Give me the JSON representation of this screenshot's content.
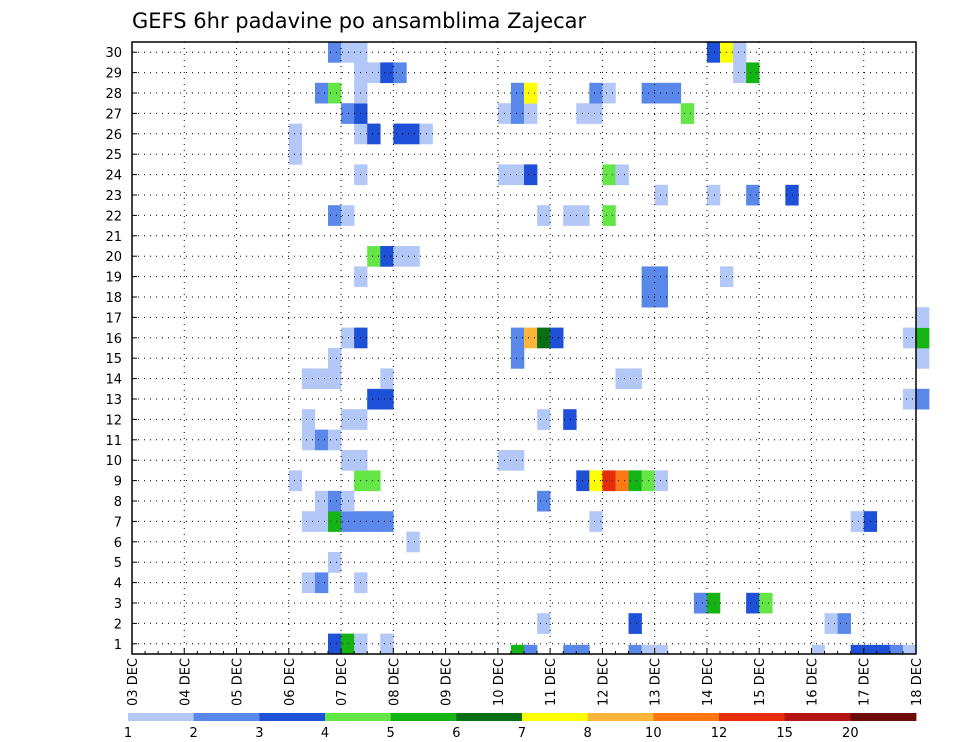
{
  "chart_data": {
    "type": "heatmap",
    "title": "GEFS 6hr padavine po ansamblima Zajecar",
    "x_labels": [
      "03 DEC",
      "04 DEC",
      "05 DEC",
      "06 DEC",
      "07 DEC",
      "08 DEC",
      "09 DEC",
      "10 DEC",
      "11 DEC",
      "12 DEC",
      "13 DEC",
      "14 DEC",
      "15 DEC",
      "16 DEC",
      "17 DEC",
      "18 DEC"
    ],
    "y_labels": [
      "1",
      "2",
      "3",
      "4",
      "5",
      "6",
      "7",
      "8",
      "9",
      "10",
      "11",
      "12",
      "13",
      "14",
      "15",
      "16",
      "17",
      "18",
      "19",
      "20",
      "21",
      "22",
      "23",
      "24",
      "25",
      "26",
      "27",
      "28",
      "29",
      "30"
    ],
    "legend": {
      "levels": [
        "1",
        "2",
        "3",
        "4",
        "5",
        "6",
        "7",
        "8",
        "10",
        "12",
        "15",
        "20"
      ],
      "colors": [
        "#b4c8f8",
        "#5a88ea",
        "#1e50d8",
        "#64e646",
        "#14b414",
        "#0a6e14",
        "#ffff00",
        "#ffb43c",
        "#ff7814",
        "#e62d0a",
        "#b41414",
        "#6e0a0a"
      ]
    },
    "grid": true,
    "cells": [
      {
        "member": 0,
        "date": "10 DEC 06Z",
        "cls": 5
      },
      {
        "member": 0,
        "date": "10 DEC 12Z",
        "cls": 2
      },
      {
        "member": 0,
        "date": "11 DEC 06Z",
        "cls": 2
      },
      {
        "member": 0,
        "date": "11 DEC 12Z",
        "cls": 2
      },
      {
        "member": 0,
        "date": "12 DEC 12Z",
        "cls": 2
      },
      {
        "member": 0,
        "date": "12 DEC 18Z",
        "cls": 1
      },
      {
        "member": 0,
        "date": "13 DEC 00Z",
        "cls": 1
      },
      {
        "member": 0,
        "date": "16 DEC 00Z",
        "cls": 1
      },
      {
        "member": 0,
        "date": "16 DEC 18Z",
        "cls": 3
      },
      {
        "member": 0,
        "date": "17 DEC 00Z",
        "cls": 3
      },
      {
        "member": 0,
        "date": "17 DEC 06Z",
        "cls": 3
      },
      {
        "member": 0,
        "date": "17 DEC 12Z",
        "cls": 2
      },
      {
        "member": 0,
        "date": "17 DEC 18Z",
        "cls": 1
      },
      {
        "member": 1,
        "date": "06 DEC 18Z",
        "cls": 3
      },
      {
        "member": 1,
        "date": "07 DEC 00Z",
        "cls": 5
      },
      {
        "member": 1,
        "date": "07 DEC 06Z",
        "cls": 1
      },
      {
        "member": 1,
        "date": "07 DEC 18Z",
        "cls": 1
      },
      {
        "member": 2,
        "date": "10 DEC 18Z",
        "cls": 1
      },
      {
        "member": 2,
        "date": "12 DEC 12Z",
        "cls": 3
      },
      {
        "member": 2,
        "date": "16 DEC 06Z",
        "cls": 1
      },
      {
        "member": 2,
        "date": "16 DEC 12Z",
        "cls": 2
      },
      {
        "member": 3,
        "date": "13 DEC 18Z",
        "cls": 2
      },
      {
        "member": 3,
        "date": "14 DEC 00Z",
        "cls": 5
      },
      {
        "member": 3,
        "date": "14 DEC 18Z",
        "cls": 3
      },
      {
        "member": 3,
        "date": "15 DEC 00Z",
        "cls": 4
      },
      {
        "member": 4,
        "date": "06 DEC 06Z",
        "cls": 1
      },
      {
        "member": 4,
        "date": "06 DEC 12Z",
        "cls": 2
      },
      {
        "member": 4,
        "date": "07 DEC 06Z",
        "cls": 1
      },
      {
        "member": 5,
        "date": "06 DEC 18Z",
        "cls": 1
      },
      {
        "member": 6,
        "date": "08 DEC 06Z",
        "cls": 1
      },
      {
        "member": 7,
        "date": "06 DEC 06Z",
        "cls": 1
      },
      {
        "member": 7,
        "date": "06 DEC 12Z",
        "cls": 1
      },
      {
        "member": 7,
        "date": "06 DEC 18Z",
        "cls": 5
      },
      {
        "member": 7,
        "date": "07 DEC 00Z",
        "cls": 2
      },
      {
        "member": 7,
        "date": "07 DEC 06Z",
        "cls": 2
      },
      {
        "member": 7,
        "date": "07 DEC 12Z",
        "cls": 2
      },
      {
        "member": 7,
        "date": "07 DEC 18Z",
        "cls": 2
      },
      {
        "member": 7,
        "date": "11 DEC 18Z",
        "cls": 1
      },
      {
        "member": 7,
        "date": "16 DEC 18Z",
        "cls": 1
      },
      {
        "member": 7,
        "date": "17 DEC 00Z",
        "cls": 3
      },
      {
        "member": 8,
        "date": "06 DEC 12Z",
        "cls": 1
      },
      {
        "member": 8,
        "date": "06 DEC 18Z",
        "cls": 2
      },
      {
        "member": 8,
        "date": "07 DEC 00Z",
        "cls": 1
      },
      {
        "member": 8,
        "date": "10 DEC 18Z",
        "cls": 2
      },
      {
        "member": 9,
        "date": "06 DEC 00Z",
        "cls": 1
      },
      {
        "member": 9,
        "date": "07 DEC 06Z",
        "cls": 4
      },
      {
        "member": 9,
        "date": "07 DEC 12Z",
        "cls": 4
      },
      {
        "member": 9,
        "date": "11 DEC 12Z",
        "cls": 3
      },
      {
        "member": 9,
        "date": "11 DEC 18Z",
        "cls": 7
      },
      {
        "member": 9,
        "date": "12 DEC 00Z",
        "cls": 10
      },
      {
        "member": 9,
        "date": "12 DEC 06Z",
        "cls": 9
      },
      {
        "member": 9,
        "date": "12 DEC 12Z",
        "cls": 5
      },
      {
        "member": 9,
        "date": "12 DEC 18Z",
        "cls": 4
      },
      {
        "member": 9,
        "date": "13 DEC 00Z",
        "cls": 1
      },
      {
        "member": 10,
        "date": "10 DEC 00Z",
        "cls": 1
      },
      {
        "member": 10,
        "date": "10 DEC 06Z",
        "cls": 1
      },
      {
        "member": 10,
        "date": "07 DEC 00Z",
        "cls": 1
      },
      {
        "member": 10,
        "date": "07 DEC 06Z",
        "cls": 1
      },
      {
        "member": 11,
        "date": "06 DEC 06Z",
        "cls": 1
      },
      {
        "member": 11,
        "date": "06 DEC 12Z",
        "cls": 2
      },
      {
        "member": 11,
        "date": "06 DEC 18Z",
        "cls": 1
      },
      {
        "member": 12,
        "date": "06 DEC 06Z",
        "cls": 1
      },
      {
        "member": 12,
        "date": "07 DEC 00Z",
        "cls": 1
      },
      {
        "member": 12,
        "date": "07 DEC 06Z",
        "cls": 1
      },
      {
        "member": 12,
        "date": "10 DEC 18Z",
        "cls": 1
      },
      {
        "member": 12,
        "date": "11 DEC 06Z",
        "cls": 3
      },
      {
        "member": 13,
        "date": "07 DEC 12Z",
        "cls": 3
      },
      {
        "member": 13,
        "date": "07 DEC 18Z",
        "cls": 3
      },
      {
        "member": 13,
        "date": "17 DEC 18Z",
        "cls": 1
      },
      {
        "member": 13,
        "date": "18 DEC 00Z",
        "cls": 2
      },
      {
        "member": 14,
        "date": "06 DEC 06Z",
        "cls": 1
      },
      {
        "member": 14,
        "date": "06 DEC 12Z",
        "cls": 1
      },
      {
        "member": 14,
        "date": "06 DEC 18Z",
        "cls": 1
      },
      {
        "member": 14,
        "date": "07 DEC 18Z",
        "cls": 1
      },
      {
        "member": 14,
        "date": "12 DEC 06Z",
        "cls": 1
      },
      {
        "member": 14,
        "date": "12 DEC 12Z",
        "cls": 1
      },
      {
        "member": 15,
        "date": "06 DEC 18Z",
        "cls": 1
      },
      {
        "member": 15,
        "date": "10 DEC 06Z",
        "cls": 2
      },
      {
        "member": 15,
        "date": "18 DEC 00Z",
        "cls": 1
      },
      {
        "member": 16,
        "date": "07 DEC 00Z",
        "cls": 1
      },
      {
        "member": 16,
        "date": "07 DEC 06Z",
        "cls": 3
      },
      {
        "member": 16,
        "date": "10 DEC 06Z",
        "cls": 2
      },
      {
        "member": 16,
        "date": "10 DEC 12Z",
        "cls": 8
      },
      {
        "member": 16,
        "date": "10 DEC 18Z",
        "cls": 6
      },
      {
        "member": 16,
        "date": "11 DEC 00Z",
        "cls": 3
      },
      {
        "member": 16,
        "date": "17 DEC 18Z",
        "cls": 1
      },
      {
        "member": 16,
        "date": "18 DEC 00Z",
        "cls": 5
      },
      {
        "member": 17,
        "date": "18 DEC 00Z",
        "cls": 1
      },
      {
        "member": 18,
        "date": "12 DEC 18Z",
        "cls": 2
      },
      {
        "member": 18,
        "date": "13 DEC 00Z",
        "cls": 2
      },
      {
        "member": 19,
        "date": "07 DEC 06Z",
        "cls": 1
      },
      {
        "member": 19,
        "date": "12 DEC 18Z",
        "cls": 2
      },
      {
        "member": 19,
        "date": "13 DEC 00Z",
        "cls": 2
      },
      {
        "member": 19,
        "date": "14 DEC 06Z",
        "cls": 1
      },
      {
        "member": 20,
        "date": "07 DEC 12Z",
        "cls": 4
      },
      {
        "member": 20,
        "date": "07 DEC 18Z",
        "cls": 3
      },
      {
        "member": 20,
        "date": "08 DEC 00Z",
        "cls": 1
      },
      {
        "member": 20,
        "date": "08 DEC 06Z",
        "cls": 1
      },
      {
        "member": 22,
        "date": "06 DEC 18Z",
        "cls": 2
      },
      {
        "member": 22,
        "date": "07 DEC 00Z",
        "cls": 1
      },
      {
        "member": 22,
        "date": "10 DEC 18Z",
        "cls": 1
      },
      {
        "member": 22,
        "date": "11 DEC 06Z",
        "cls": 1
      },
      {
        "member": 22,
        "date": "11 DEC 12Z",
        "cls": 1
      },
      {
        "member": 22,
        "date": "12 DEC 00Z",
        "cls": 4
      },
      {
        "member": 23,
        "date": "13 DEC 00Z",
        "cls": 1
      },
      {
        "member": 23,
        "date": "14 DEC 00Z",
        "cls": 1
      },
      {
        "member": 23,
        "date": "14 DEC 18Z",
        "cls": 2
      },
      {
        "member": 23,
        "date": "15 DEC 12Z",
        "cls": 3
      },
      {
        "member": 24,
        "date": "07 DEC 06Z",
        "cls": 1
      },
      {
        "member": 24,
        "date": "10 DEC 00Z",
        "cls": 1
      },
      {
        "member": 24,
        "date": "10 DEC 06Z",
        "cls": 1
      },
      {
        "member": 24,
        "date": "10 DEC 12Z",
        "cls": 3
      },
      {
        "member": 24,
        "date": "12 DEC 00Z",
        "cls": 4
      },
      {
        "member": 24,
        "date": "12 DEC 06Z",
        "cls": 1
      },
      {
        "member": 25,
        "date": "06 DEC 00Z",
        "cls": 1
      },
      {
        "member": 26,
        "date": "06 DEC 00Z",
        "cls": 1
      },
      {
        "member": 26,
        "date": "07 DEC 06Z",
        "cls": 1
      },
      {
        "member": 26,
        "date": "07 DEC 12Z",
        "cls": 3
      },
      {
        "member": 26,
        "date": "08 DEC 00Z",
        "cls": 3
      },
      {
        "member": 26,
        "date": "08 DEC 06Z",
        "cls": 3
      },
      {
        "member": 26,
        "date": "08 DEC 12Z",
        "cls": 1
      },
      {
        "member": 27,
        "date": "07 DEC 00Z",
        "cls": 2
      },
      {
        "member": 27,
        "date": "07 DEC 06Z",
        "cls": 3
      },
      {
        "member": 27,
        "date": "10 DEC 00Z",
        "cls": 1
      },
      {
        "member": 27,
        "date": "10 DEC 06Z",
        "cls": 2
      },
      {
        "member": 27,
        "date": "10 DEC 12Z",
        "cls": 1
      },
      {
        "member": 27,
        "date": "11 DEC 12Z",
        "cls": 1
      },
      {
        "member": 27,
        "date": "11 DEC 18Z",
        "cls": 1
      },
      {
        "member": 27,
        "date": "13 DEC 12Z",
        "cls": 4
      },
      {
        "member": 28,
        "date": "06 DEC 12Z",
        "cls": 2
      },
      {
        "member": 28,
        "date": "06 DEC 18Z",
        "cls": 4
      },
      {
        "member": 28,
        "date": "07 DEC 06Z",
        "cls": 1
      },
      {
        "member": 28,
        "date": "10 DEC 06Z",
        "cls": 2
      },
      {
        "member": 28,
        "date": "10 DEC 12Z",
        "cls": 7
      },
      {
        "member": 28,
        "date": "11 DEC 18Z",
        "cls": 2
      },
      {
        "member": 28,
        "date": "12 DEC 00Z",
        "cls": 1
      },
      {
        "member": 28,
        "date": "12 DEC 18Z",
        "cls": 2
      },
      {
        "member": 28,
        "date": "13 DEC 00Z",
        "cls": 2
      },
      {
        "member": 28,
        "date": "13 DEC 06Z",
        "cls": 2
      },
      {
        "member": 29,
        "date": "07 DEC 06Z",
        "cls": 1
      },
      {
        "member": 29,
        "date": "07 DEC 12Z",
        "cls": 1
      },
      {
        "member": 29,
        "date": "07 DEC 18Z",
        "cls": 3
      },
      {
        "member": 29,
        "date": "08 DEC 00Z",
        "cls": 2
      },
      {
        "member": 29,
        "date": "14 DEC 12Z",
        "cls": 1
      },
      {
        "member": 29,
        "date": "14 DEC 18Z",
        "cls": 5
      },
      {
        "member": 30,
        "date": "06 DEC 18Z",
        "cls": 2
      },
      {
        "member": 30,
        "date": "07 DEC 00Z",
        "cls": 1
      },
      {
        "member": 30,
        "date": "07 DEC 06Z",
        "cls": 1
      },
      {
        "member": 30,
        "date": "14 DEC 00Z",
        "cls": 3
      },
      {
        "member": 30,
        "date": "14 DEC 06Z",
        "cls": 7
      },
      {
        "member": 30,
        "date": "14 DEC 12Z",
        "cls": 1
      }
    ]
  }
}
